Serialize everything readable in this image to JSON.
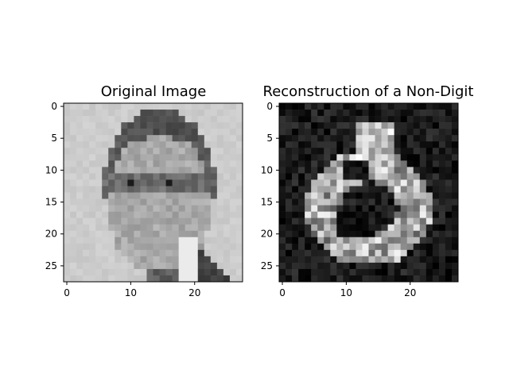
{
  "chart_data": [
    {
      "type": "heatmap",
      "title": "Original Image",
      "xlabel": "",
      "ylabel": "",
      "colormap": "gray",
      "grid": false,
      "shape": [
        28,
        28
      ],
      "xlim": [
        -0.5,
        27.5
      ],
      "ylim": [
        27.5,
        -0.5
      ],
      "x_ticks": [
        0,
        10,
        20
      ],
      "y_ticks": [
        0,
        5,
        10,
        15,
        20,
        25
      ],
      "pattern": "face",
      "description_visible": "grayscale portrait of a man wearing glasses, light background, dark suit lower right"
    },
    {
      "type": "heatmap",
      "title": "Reconstruction of a Non-Digit",
      "xlabel": "",
      "ylabel": "",
      "colormap": "gray",
      "grid": false,
      "shape": [
        28,
        28
      ],
      "xlim": [
        -0.5,
        27.5
      ],
      "ylim": [
        27.5,
        -0.5
      ],
      "x_ticks": [
        0,
        10,
        20
      ],
      "y_ticks": [
        0,
        5,
        10,
        15,
        20,
        25
      ],
      "pattern": "blob"
    }
  ],
  "colors": {
    "background": "#ffffff",
    "axis": "#000000"
  }
}
